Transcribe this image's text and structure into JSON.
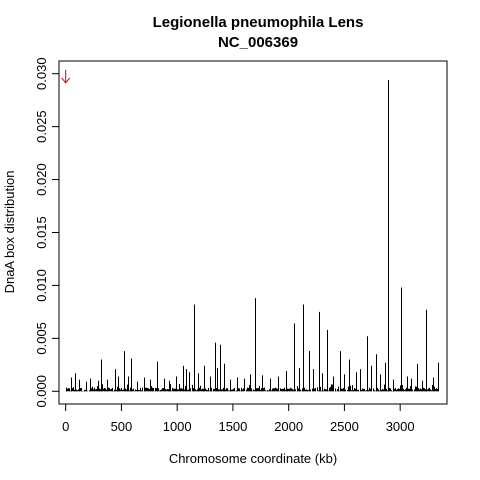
{
  "chart_data": {
    "type": "bar",
    "title": "Legionella pneumophila Lens",
    "subtitle": "NC_006369",
    "xlabel": "Chromosome coordinate (kb)",
    "ylabel": "DnaA box distribution",
    "xlim": [
      -60,
      3420
    ],
    "ylim": [
      -0.0012,
      0.0312
    ],
    "xticks": [
      0,
      500,
      1000,
      1500,
      2000,
      2500,
      3000
    ],
    "yticks": [
      0.0,
      0.005,
      0.01,
      0.015,
      0.02,
      0.025,
      0.03
    ],
    "ytick_labels": [
      "0.000",
      "0.005",
      "0.010",
      "0.015",
      "0.020",
      "0.025",
      "0.030"
    ],
    "grid": false,
    "legend": "none",
    "genome_length_kb": 3345,
    "bar_color": "#000000",
    "marker": {
      "x": 0,
      "y": 0.0297,
      "shape": "arrow-down",
      "color": "#cc0000"
    },
    "peaks": [
      {
        "x": 50,
        "y": 0.0013
      },
      {
        "x": 80,
        "y": 0.0017
      },
      {
        "x": 120,
        "y": 0.0011
      },
      {
        "x": 180,
        "y": 0.0009
      },
      {
        "x": 220,
        "y": 0.0012
      },
      {
        "x": 290,
        "y": 0.001
      },
      {
        "x": 320,
        "y": 0.003
      },
      {
        "x": 370,
        "y": 0.0011
      },
      {
        "x": 440,
        "y": 0.0021
      },
      {
        "x": 470,
        "y": 0.0014
      },
      {
        "x": 520,
        "y": 0.0038
      },
      {
        "x": 560,
        "y": 0.0014
      },
      {
        "x": 590,
        "y": 0.0031
      },
      {
        "x": 640,
        "y": 0.0009
      },
      {
        "x": 700,
        "y": 0.0013
      },
      {
        "x": 760,
        "y": 0.0011
      },
      {
        "x": 820,
        "y": 0.0028
      },
      {
        "x": 880,
        "y": 0.0012
      },
      {
        "x": 930,
        "y": 0.001
      },
      {
        "x": 990,
        "y": 0.0014
      },
      {
        "x": 1050,
        "y": 0.0024
      },
      {
        "x": 1080,
        "y": 0.0021
      },
      {
        "x": 1110,
        "y": 0.0018
      },
      {
        "x": 1150,
        "y": 0.0082
      },
      {
        "x": 1190,
        "y": 0.0017
      },
      {
        "x": 1240,
        "y": 0.0024
      },
      {
        "x": 1290,
        "y": 0.0014
      },
      {
        "x": 1340,
        "y": 0.0046
      },
      {
        "x": 1360,
        "y": 0.0022
      },
      {
        "x": 1380,
        "y": 0.0044
      },
      {
        "x": 1420,
        "y": 0.0026
      },
      {
        "x": 1470,
        "y": 0.0011
      },
      {
        "x": 1540,
        "y": 0.0013
      },
      {
        "x": 1600,
        "y": 0.0012
      },
      {
        "x": 1650,
        "y": 0.0016
      },
      {
        "x": 1700,
        "y": 0.0088
      },
      {
        "x": 1760,
        "y": 0.0015
      },
      {
        "x": 1830,
        "y": 0.0012
      },
      {
        "x": 1900,
        "y": 0.0014
      },
      {
        "x": 1980,
        "y": 0.0019
      },
      {
        "x": 2050,
        "y": 0.0064
      },
      {
        "x": 2090,
        "y": 0.0022
      },
      {
        "x": 2130,
        "y": 0.0082
      },
      {
        "x": 2180,
        "y": 0.0038
      },
      {
        "x": 2220,
        "y": 0.0021
      },
      {
        "x": 2270,
        "y": 0.0075
      },
      {
        "x": 2300,
        "y": 0.0017
      },
      {
        "x": 2340,
        "y": 0.0058
      },
      {
        "x": 2400,
        "y": 0.0014
      },
      {
        "x": 2460,
        "y": 0.0038
      },
      {
        "x": 2500,
        "y": 0.0016
      },
      {
        "x": 2540,
        "y": 0.003
      },
      {
        "x": 2600,
        "y": 0.0018
      },
      {
        "x": 2640,
        "y": 0.0021
      },
      {
        "x": 2700,
        "y": 0.0052
      },
      {
        "x": 2740,
        "y": 0.0024
      },
      {
        "x": 2780,
        "y": 0.0035
      },
      {
        "x": 2820,
        "y": 0.0016
      },
      {
        "x": 2860,
        "y": 0.0027
      },
      {
        "x": 2895,
        "y": 0.0294
      },
      {
        "x": 2940,
        "y": 0.0011
      },
      {
        "x": 3010,
        "y": 0.0098
      },
      {
        "x": 3060,
        "y": 0.0014
      },
      {
        "x": 3100,
        "y": 0.0012
      },
      {
        "x": 3150,
        "y": 0.0026
      },
      {
        "x": 3200,
        "y": 0.001
      },
      {
        "x": 3230,
        "y": 0.0077
      },
      {
        "x": 3290,
        "y": 0.0013
      },
      {
        "x": 3340,
        "y": 0.0027
      }
    ]
  }
}
